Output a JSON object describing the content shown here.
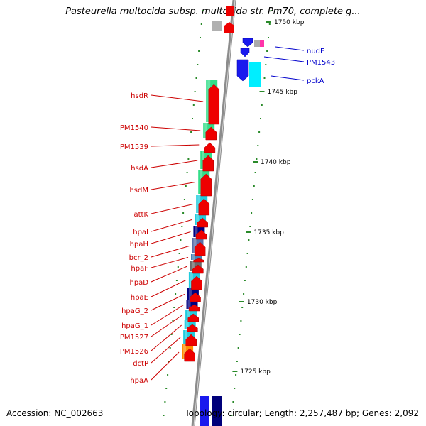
{
  "title": "Pasteurella multocida subsp. multocida str. Pm70, complete g...",
  "footer": {
    "accession": "Accession: NC_002663",
    "topology": "Topology: circular; Length: 2,257,487 bp; Genes: 2,092"
  },
  "colors": {
    "backbone": "#8c8c8c",
    "forward_cds": "#ee0000",
    "reverse_cds": "#1a1aee",
    "label_red": "#cc0000",
    "label_blue": "#0000cc",
    "tick": "#2a8a2a",
    "green_feature": "#33dd88",
    "cyan_feature": "#22ccdd",
    "navy_feature": "#000080",
    "orange_feature": "#ff8c00"
  },
  "scale_labels": [
    "1750 kbp",
    "1745 kbp",
    "1740 kbp",
    "1735 kbp",
    "1730 kbp",
    "1725 kbp"
  ],
  "left_genes": [
    {
      "name": "hsdR",
      "color": "green"
    },
    {
      "name": "PM1540",
      "color": "green"
    },
    {
      "name": "PM1539",
      "color": "none"
    },
    {
      "name": "hsdA",
      "color": "green"
    },
    {
      "name": "hsdM",
      "color": "green"
    },
    {
      "name": "attK",
      "color": "cyan"
    },
    {
      "name": "hpaI",
      "color": "cyan"
    },
    {
      "name": "hpaH",
      "color": "navy"
    },
    {
      "name": "bcr_2",
      "color": "mixed"
    },
    {
      "name": "hpaF",
      "color": "steel"
    },
    {
      "name": "hpaD",
      "color": "gray"
    },
    {
      "name": "hpaE",
      "color": "cyan"
    },
    {
      "name": "hpaG_2",
      "color": "navy"
    },
    {
      "name": "hpaG_1",
      "color": "navy"
    },
    {
      "name": "PM1527",
      "color": "cyan"
    },
    {
      "name": "PM1526",
      "color": "cyan"
    },
    {
      "name": "dctP",
      "color": "cyan"
    },
    {
      "name": "hpaA",
      "color": "orange"
    }
  ],
  "right_genes": [
    {
      "name": "nudE"
    },
    {
      "name": "PM1543"
    },
    {
      "name": "pckA"
    }
  ]
}
